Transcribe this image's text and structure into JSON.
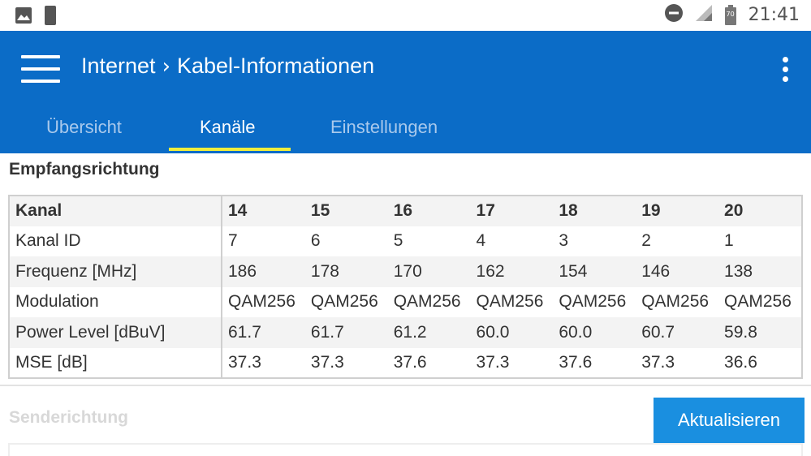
{
  "status_bar": {
    "time": "21:41",
    "battery": "70"
  },
  "app_bar": {
    "section": "Internet",
    "separator": "›",
    "page": "Kabel-Informationen",
    "tabs": [
      {
        "label": "Übersicht",
        "active": false
      },
      {
        "label": "Kanäle",
        "active": true
      },
      {
        "label": "Einstellungen",
        "active": false
      }
    ]
  },
  "downstream": {
    "title": "Empfangsrichtung",
    "header_label": "Kanal",
    "channels": [
      "14",
      "15",
      "16",
      "17",
      "18",
      "19",
      "20"
    ],
    "rows": [
      {
        "label": "Kanal ID",
        "values": [
          "7",
          "6",
          "5",
          "4",
          "3",
          "2",
          "1"
        ]
      },
      {
        "label": "Frequenz [MHz]",
        "values": [
          "186",
          "178",
          "170",
          "162",
          "154",
          "146",
          "138"
        ]
      },
      {
        "label": "Modulation",
        "values": [
          "QAM256",
          "QAM256",
          "QAM256",
          "QAM256",
          "QAM256",
          "QAM256",
          "QAM256"
        ]
      },
      {
        "label": "Power Level [dBuV]",
        "values": [
          "61.7",
          "61.7",
          "61.2",
          "60.0",
          "60.0",
          "60.7",
          "59.8"
        ]
      },
      {
        "label": "MSE [dB]",
        "values": [
          "37.3",
          "37.3",
          "37.6",
          "37.3",
          "37.6",
          "37.3",
          "36.6"
        ]
      }
    ]
  },
  "upstream": {
    "title": "Senderichtung"
  },
  "refresh_button": {
    "label": "Aktualisieren"
  },
  "colors": {
    "app_bar": "#0b6cc7",
    "tab_indicator": "#f0ee3c",
    "button": "#1a8fe0"
  }
}
